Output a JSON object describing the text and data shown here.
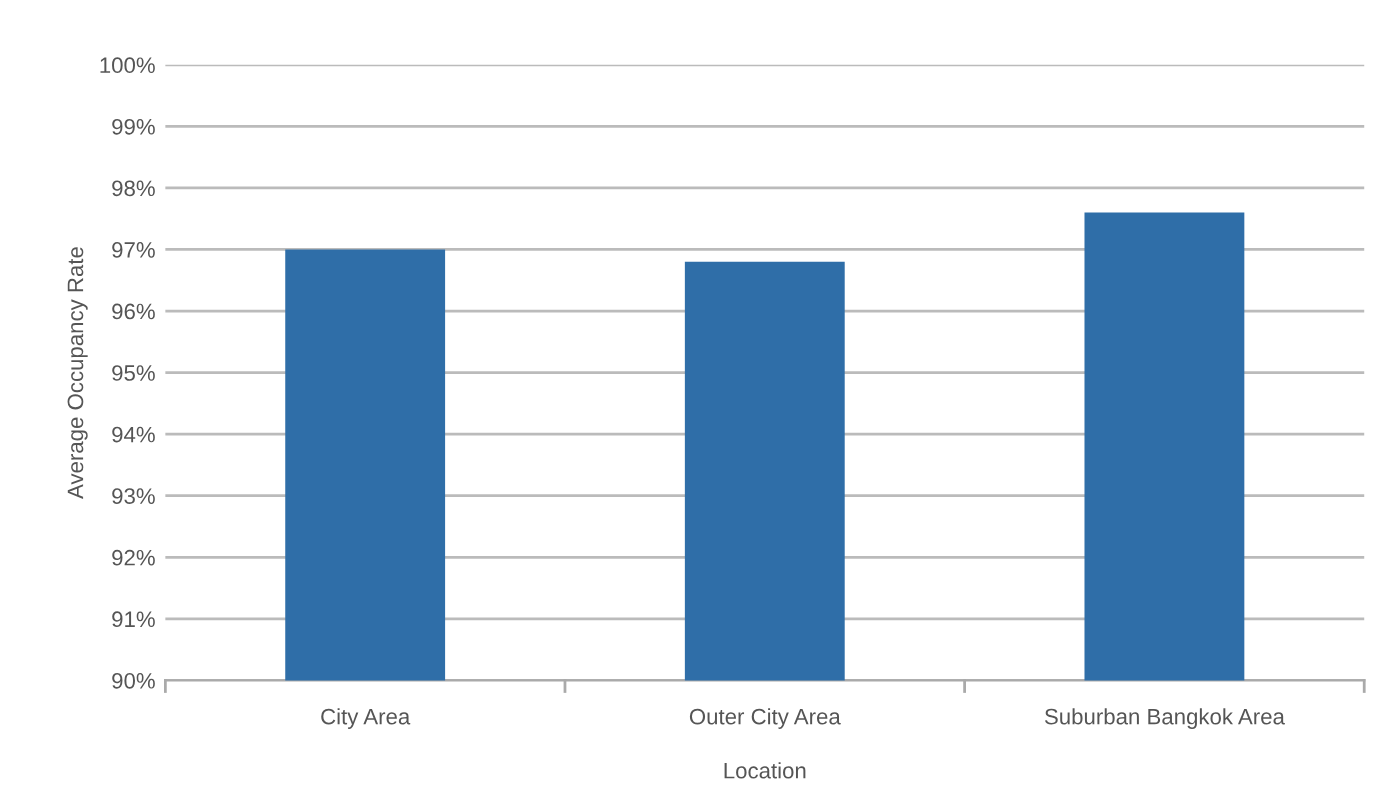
{
  "chart_data": {
    "type": "bar",
    "xlabel": "Location",
    "ylabel": "Average Occupancy Rate",
    "categories": [
      "City Area",
      "Outer City Area",
      "Suburban Bangkok Area"
    ],
    "values": [
      97.0,
      96.8,
      97.6
    ],
    "color": "#2f6ea8",
    "ylim": [
      90,
      100
    ],
    "yticks": [
      {
        "value": 90,
        "label": "90%"
      },
      {
        "value": 91,
        "label": "91%"
      },
      {
        "value": 92,
        "label": "92%"
      },
      {
        "value": 93,
        "label": "93%"
      },
      {
        "value": 94,
        "label": "94%"
      },
      {
        "value": 95,
        "label": "95%"
      },
      {
        "value": 96,
        "label": "96%"
      },
      {
        "value": 97,
        "label": "97%"
      },
      {
        "value": 98,
        "label": "98%"
      },
      {
        "value": 99,
        "label": "99%"
      },
      {
        "value": 100,
        "label": "100%"
      }
    ],
    "grid": "y"
  }
}
